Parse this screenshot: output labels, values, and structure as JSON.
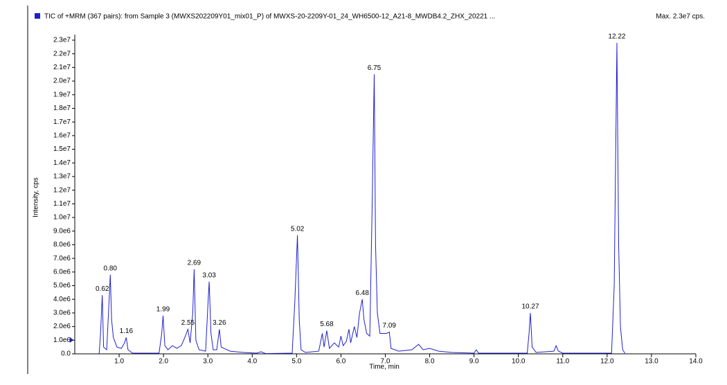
{
  "chart_data": {
    "type": "line",
    "title": "TIC of +MRM (367 pairs): from Sample 3 (MWXS202209Y01_mix01_P) of MWXS-20-2209Y-01_24_WH6500-12_A21-8_MWDB4.2_ZHX_20221 ...",
    "max_label": "Max. 2.3e7 cps.",
    "xlabel": "Time, min",
    "ylabel": "Intensity, cps",
    "xlim": [
      0,
      14
    ],
    "ylim": [
      0,
      23000000
    ],
    "xticks": [
      {
        "value": 1,
        "label": "1.0"
      },
      {
        "value": 2,
        "label": "2.0"
      },
      {
        "value": 3,
        "label": "3.0"
      },
      {
        "value": 4,
        "label": "4.0"
      },
      {
        "value": 5,
        "label": "5.0"
      },
      {
        "value": 6,
        "label": "6.0"
      },
      {
        "value": 7,
        "label": "7.0"
      },
      {
        "value": 8,
        "label": "8.0"
      },
      {
        "value": 9,
        "label": "9.0"
      },
      {
        "value": 10,
        "label": "10.0"
      },
      {
        "value": 11,
        "label": "11.0"
      },
      {
        "value": 12,
        "label": "12.0"
      },
      {
        "value": 13,
        "label": "13.0"
      },
      {
        "value": 14,
        "label": "14.0"
      }
    ],
    "yticks": [
      {
        "value": 0,
        "label": "0.0"
      },
      {
        "value": 1000000,
        "label": "1.0e6"
      },
      {
        "value": 2000000,
        "label": "2.0e6"
      },
      {
        "value": 3000000,
        "label": "3.0e6"
      },
      {
        "value": 4000000,
        "label": "4.0e6"
      },
      {
        "value": 5000000,
        "label": "5.0e6"
      },
      {
        "value": 6000000,
        "label": "6.0e6"
      },
      {
        "value": 7000000,
        "label": "7.0e6"
      },
      {
        "value": 8000000,
        "label": "8.0e6"
      },
      {
        "value": 9000000,
        "label": "9.0e6"
      },
      {
        "value": 10000000,
        "label": "1.0e7"
      },
      {
        "value": 11000000,
        "label": "1.1e7"
      },
      {
        "value": 12000000,
        "label": "1.2e7"
      },
      {
        "value": 13000000,
        "label": "1.3e7"
      },
      {
        "value": 14000000,
        "label": "1.4e7"
      },
      {
        "value": 15000000,
        "label": "1.5e7"
      },
      {
        "value": 16000000,
        "label": "1.6e7"
      },
      {
        "value": 17000000,
        "label": "1.7e7"
      },
      {
        "value": 18000000,
        "label": "1.8e7"
      },
      {
        "value": 19000000,
        "label": "1.9e7"
      },
      {
        "value": 20000000,
        "label": "2.0e7"
      },
      {
        "value": 21000000,
        "label": "2.1e7"
      },
      {
        "value": 22000000,
        "label": "2.2e7"
      },
      {
        "value": 23000000,
        "label": "2.3e7"
      }
    ],
    "x": [
      0.55,
      0.58,
      0.62,
      0.65,
      0.72,
      0.76,
      0.8,
      0.83,
      0.87,
      0.95,
      1.05,
      1.12,
      1.16,
      1.2,
      1.3,
      1.9,
      1.96,
      1.99,
      2.03,
      2.1,
      2.2,
      2.3,
      2.4,
      2.48,
      2.55,
      2.6,
      2.66,
      2.69,
      2.73,
      2.8,
      2.95,
      3.0,
      3.03,
      3.07,
      3.12,
      3.2,
      3.26,
      3.3,
      3.5,
      3.8,
      4.1,
      4.2,
      4.3,
      4.9,
      4.96,
      5.02,
      5.06,
      5.1,
      5.2,
      5.5,
      5.58,
      5.62,
      5.68,
      5.74,
      5.85,
      5.95,
      6.0,
      6.05,
      6.12,
      6.18,
      6.22,
      6.3,
      6.36,
      6.42,
      6.48,
      6.52,
      6.58,
      6.65,
      6.71,
      6.75,
      6.78,
      6.82,
      6.88,
      6.95,
      7.03,
      7.09,
      7.13,
      7.3,
      7.6,
      7.75,
      7.85,
      8.0,
      8.2,
      8.5,
      9.0,
      9.05,
      9.1,
      9.5,
      10.2,
      10.24,
      10.27,
      10.31,
      10.4,
      10.8,
      10.85,
      10.9,
      11.0,
      12.1,
      12.16,
      12.22,
      12.26,
      12.3,
      12.35,
      12.4
    ],
    "series": [
      {
        "color": "#1f1fd0",
        "values": [
          0,
          1500000,
          4300000,
          500000,
          300000,
          3000000,
          5800000,
          2500000,
          1200000,
          500000,
          400000,
          800000,
          1200000,
          300000,
          50000,
          50000,
          1500000,
          2800000,
          600000,
          300000,
          600000,
          400000,
          600000,
          1200000,
          1800000,
          800000,
          3000000,
          6200000,
          1000000,
          300000,
          200000,
          3500000,
          5300000,
          1500000,
          300000,
          300000,
          1800000,
          500000,
          200000,
          100000,
          50000,
          150000,
          20000,
          50000,
          3800000,
          8700000,
          2500000,
          300000,
          100000,
          200000,
          1500000,
          500000,
          1700000,
          400000,
          800000,
          500000,
          1300000,
          600000,
          900000,
          1800000,
          800000,
          2000000,
          1200000,
          3000000,
          4000000,
          2500000,
          1500000,
          1300000,
          12000000,
          20500000,
          8000000,
          3000000,
          1500000,
          1500000,
          1500000,
          1600000,
          400000,
          200000,
          300000,
          700000,
          300000,
          400000,
          200000,
          100000,
          50000,
          300000,
          50000,
          50000,
          50000,
          1500000,
          3000000,
          500000,
          100000,
          200000,
          600000,
          200000,
          50000,
          50000,
          5000000,
          22800000,
          8000000,
          2000000,
          300000,
          50000
        ]
      }
    ],
    "annotations": [
      {
        "x": 0.62,
        "y": 4300000,
        "label": "0.62"
      },
      {
        "x": 0.8,
        "y": 5800000,
        "label": "0.80"
      },
      {
        "x": 1.16,
        "y": 1200000,
        "label": "1.16"
      },
      {
        "x": 1.99,
        "y": 2800000,
        "label": "1.99"
      },
      {
        "x": 2.55,
        "y": 1800000,
        "label": "2.55"
      },
      {
        "x": 2.69,
        "y": 6200000,
        "label": "2.69"
      },
      {
        "x": 3.03,
        "y": 5300000,
        "label": "3.03"
      },
      {
        "x": 3.26,
        "y": 1800000,
        "label": "3.26"
      },
      {
        "x": 5.02,
        "y": 8700000,
        "label": "5.02"
      },
      {
        "x": 5.68,
        "y": 1700000,
        "label": "5.68"
      },
      {
        "x": 6.48,
        "y": 4000000,
        "label": "6.48"
      },
      {
        "x": 6.75,
        "y": 20500000,
        "label": "6.75"
      },
      {
        "x": 7.09,
        "y": 1600000,
        "label": "7.09"
      },
      {
        "x": 10.27,
        "y": 3000000,
        "label": "10.27"
      },
      {
        "x": 12.22,
        "y": 22800000,
        "label": "12.22"
      }
    ]
  }
}
